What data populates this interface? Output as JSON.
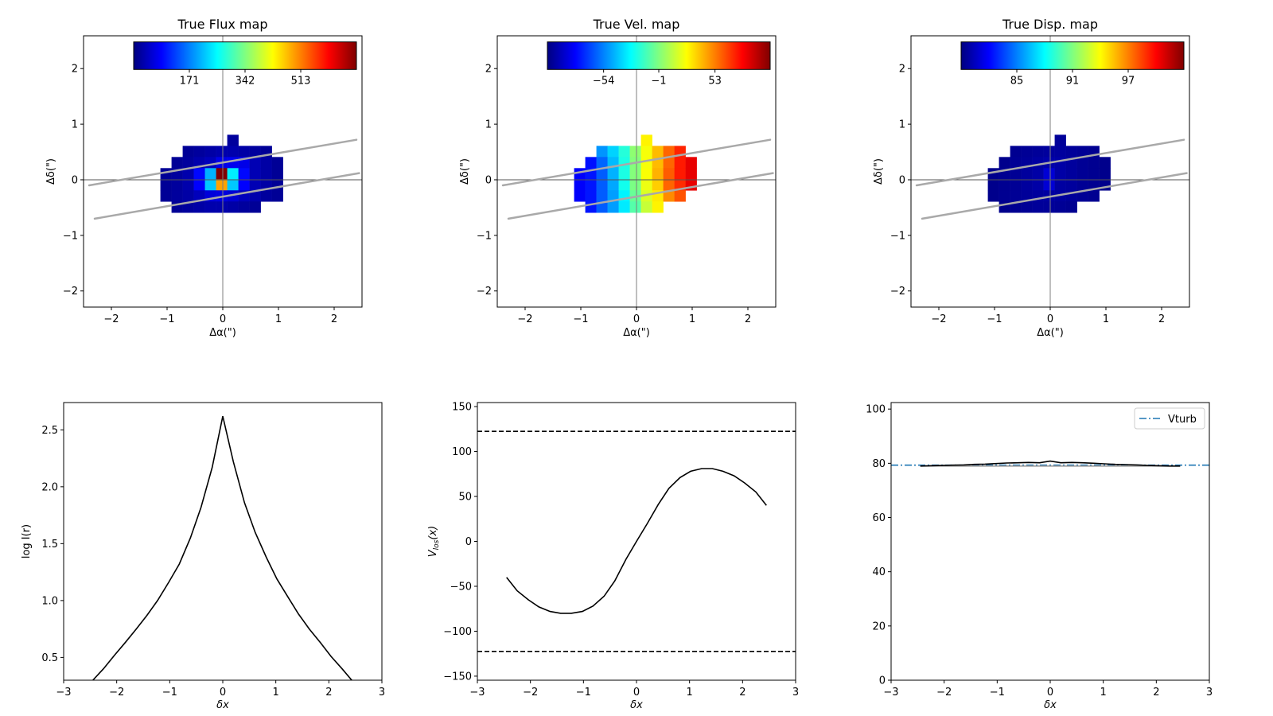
{
  "chart_data": [
    {
      "type": "heatmap",
      "title": "True Flux map",
      "xlabel": "Δα(\")",
      "ylabel": "Δδ(\")",
      "xlim": [
        -2.5,
        2.5
      ],
      "ylim": [
        -2.29,
        2.59
      ],
      "xticks": [
        {
          "v": -2,
          "label": "−2"
        },
        {
          "v": -1,
          "label": "−1"
        },
        {
          "v": 0,
          "label": "0"
        },
        {
          "v": 1,
          "label": "1"
        },
        {
          "v": 2,
          "label": "2"
        }
      ],
      "yticks": [
        {
          "v": -2,
          "label": "−2"
        },
        {
          "v": -1,
          "label": "−1"
        },
        {
          "v": 0,
          "label": "0"
        },
        {
          "v": 1,
          "label": "1"
        },
        {
          "v": 2,
          "label": "2"
        }
      ],
      "colormap": "jet",
      "clim": [
        0,
        684
      ],
      "colorbar_ticks": [
        {
          "v": 171,
          "label": "171"
        },
        {
          "v": 342,
          "label": "342"
        },
        {
          "v": 513,
          "label": "513"
        }
      ],
      "grid_x_start": -1.12,
      "grid_y_top": 0.81,
      "pixel_size": 0.2,
      "values": [
        [
          null,
          null,
          null,
          null,
          null,
          null,
          20,
          null,
          null,
          null,
          null
        ],
        [
          null,
          null,
          15,
          20,
          25,
          30,
          30,
          25,
          20,
          15,
          null
        ],
        [
          null,
          15,
          20,
          30,
          40,
          70,
          75,
          70,
          35,
          25,
          15
        ],
        [
          15,
          20,
          30,
          90,
          205,
          684,
          246,
          90,
          35,
          25,
          15
        ],
        [
          15,
          20,
          30,
          85,
          220,
          490,
          220,
          85,
          35,
          25,
          15
        ],
        [
          15,
          20,
          25,
          40,
          60,
          65,
          55,
          40,
          30,
          20,
          15
        ],
        [
          null,
          15,
          20,
          25,
          30,
          30,
          25,
          20,
          15,
          null,
          null
        ]
      ],
      "slit_lines": [
        [
          [
            -2.4,
            -0.1
          ],
          [
            2.4,
            0.72
          ]
        ],
        [
          [
            -2.3,
            -0.7
          ],
          [
            2.45,
            0.12
          ]
        ]
      ]
    },
    {
      "type": "heatmap",
      "title": "True Vel. map",
      "xlabel": "Δα(\")",
      "ylabel": "Δδ(\")",
      "xlim": [
        -2.5,
        2.5
      ],
      "ylim": [
        -2.29,
        2.59
      ],
      "xticks": [
        {
          "v": -2,
          "label": "−2"
        },
        {
          "v": -1,
          "label": "−1"
        },
        {
          "v": 0,
          "label": "0"
        },
        {
          "v": 1,
          "label": "1"
        },
        {
          "v": 2,
          "label": "2"
        }
      ],
      "yticks": [
        {
          "v": -2,
          "label": "−2"
        },
        {
          "v": -1,
          "label": "−1"
        },
        {
          "v": 0,
          "label": "0"
        },
        {
          "v": 1,
          "label": "1"
        },
        {
          "v": 2,
          "label": "2"
        }
      ],
      "colormap": "jet",
      "clim": [
        -108,
        106
      ],
      "colorbar_ticks": [
        {
          "v": -54,
          "label": "−54"
        },
        {
          "v": -1,
          "label": "−1"
        },
        {
          "v": 53,
          "label": "53"
        }
      ],
      "grid_x_start": -1.12,
      "grid_y_top": 0.81,
      "pixel_size": 0.2,
      "values": [
        [
          null,
          null,
          null,
          null,
          null,
          null,
          28,
          null,
          null,
          null,
          null
        ],
        [
          null,
          null,
          -50,
          -37,
          -20,
          2,
          24,
          40,
          58,
          72,
          null
        ],
        [
          null,
          -78,
          -60,
          -42,
          -22,
          0,
          24,
          40,
          58,
          74,
          84
        ],
        [
          -82,
          -77,
          -62,
          -44,
          -22,
          0,
          25,
          42,
          60,
          74,
          84
        ],
        [
          -82,
          -77,
          -62,
          -46,
          -24,
          -2,
          22,
          36,
          58,
          70,
          84
        ],
        [
          -82,
          -77,
          -62,
          -48,
          -30,
          -6,
          18,
          30,
          50,
          62,
          null
        ],
        [
          null,
          -77,
          -62,
          -48,
          -32,
          -10,
          14,
          28,
          null,
          null,
          null
        ]
      ],
      "slit_lines": [
        [
          [
            -2.4,
            -0.1
          ],
          [
            2.4,
            0.72
          ]
        ],
        [
          [
            -2.3,
            -0.7
          ],
          [
            2.45,
            0.12
          ]
        ]
      ]
    },
    {
      "type": "heatmap",
      "title": "True Disp. map",
      "xlabel": "Δα(\")",
      "ylabel": "Δδ(\")",
      "xlim": [
        -2.5,
        2.5
      ],
      "ylim": [
        -2.29,
        2.59
      ],
      "xticks": [
        {
          "v": -2,
          "label": "−2"
        },
        {
          "v": -1,
          "label": "−1"
        },
        {
          "v": 0,
          "label": "0"
        },
        {
          "v": 1,
          "label": "1"
        },
        {
          "v": 2,
          "label": "2"
        }
      ],
      "yticks": [
        {
          "v": -2,
          "label": "−2"
        },
        {
          "v": -1,
          "label": "−1"
        },
        {
          "v": 0,
          "label": "0"
        },
        {
          "v": 1,
          "label": "1"
        },
        {
          "v": 2,
          "label": "2"
        }
      ],
      "colormap": "jet",
      "clim": [
        79,
        103
      ],
      "colorbar_ticks": [
        {
          "v": 85,
          "label": "85"
        },
        {
          "v": 91,
          "label": "91"
        },
        {
          "v": 97,
          "label": "97"
        }
      ],
      "grid_x_start": -1.12,
      "grid_y_top": 0.81,
      "pixel_size": 0.2,
      "values": [
        [
          null,
          null,
          null,
          null,
          null,
          null,
          79.6,
          null,
          null,
          null,
          null
        ],
        [
          null,
          null,
          79.4,
          79.5,
          79.6,
          79.7,
          79.7,
          79.6,
          79.5,
          79.4,
          null
        ],
        [
          null,
          79.3,
          79.5,
          79.6,
          79.8,
          80.0,
          79.9,
          79.7,
          79.5,
          79.4,
          79.3
        ],
        [
          79.3,
          79.4,
          79.5,
          79.7,
          79.9,
          81.0,
          79.9,
          79.7,
          79.5,
          79.4,
          79.3
        ],
        [
          79.3,
          79.4,
          79.5,
          79.7,
          79.9,
          81.0,
          79.8,
          79.7,
          79.5,
          79.4,
          79.3
        ],
        [
          79.3,
          79.4,
          79.5,
          79.6,
          79.7,
          79.8,
          79.7,
          79.6,
          79.5,
          79.4,
          null
        ],
        [
          null,
          79.3,
          79.4,
          79.5,
          79.6,
          79.6,
          79.5,
          79.4,
          null,
          null,
          null
        ]
      ],
      "slit_lines": [
        [
          [
            -2.4,
            -0.1
          ],
          [
            2.4,
            0.72
          ]
        ],
        [
          [
            -2.3,
            -0.7
          ],
          [
            2.45,
            0.12
          ]
        ]
      ]
    },
    {
      "type": "line",
      "title": "",
      "xlabel": "δx",
      "ylabel": "log I(r)",
      "xlim": [
        -3,
        3
      ],
      "ylim": [
        0.3,
        2.74
      ],
      "xticks": [
        {
          "v": -3,
          "label": "−3"
        },
        {
          "v": -2,
          "label": "−2"
        },
        {
          "v": -1,
          "label": "−1"
        },
        {
          "v": 0,
          "label": "0"
        },
        {
          "v": 1,
          "label": "1"
        },
        {
          "v": 2,
          "label": "2"
        },
        {
          "v": 3,
          "label": "3"
        }
      ],
      "yticks": [
        {
          "v": 0.5,
          "label": "0.5"
        },
        {
          "v": 1.0,
          "label": "1.0"
        },
        {
          "v": 1.5,
          "label": "1.5"
        },
        {
          "v": 2.0,
          "label": "2.0"
        },
        {
          "v": 2.5,
          "label": "2.5"
        }
      ],
      "series": [
        {
          "name": "log I(r)",
          "color": "#000000",
          "style": "solid",
          "x": [
            -2.65,
            -2.45,
            -2.25,
            -2.04,
            -1.84,
            -1.63,
            -1.43,
            -1.23,
            -1.02,
            -0.82,
            -0.61,
            -0.41,
            -0.2,
            0,
            0.2,
            0.41,
            0.61,
            0.82,
            1.02,
            1.23,
            1.43,
            1.63,
            1.84,
            2.04,
            2.25,
            2.45,
            2.65
          ],
          "y": [
            0.19,
            0.3,
            0.4,
            0.52,
            0.63,
            0.75,
            0.87,
            1.0,
            1.16,
            1.32,
            1.55,
            1.82,
            2.17,
            2.62,
            2.22,
            1.86,
            1.6,
            1.38,
            1.19,
            1.03,
            0.88,
            0.75,
            0.63,
            0.51,
            0.4,
            0.29,
            0.18
          ]
        }
      ]
    },
    {
      "type": "line",
      "title": "",
      "xlabel": "δx",
      "ylabel": {
        "main": "V",
        "sub": "los",
        "tail": "(x)"
      },
      "xlim": [
        -3,
        3
      ],
      "ylim": [
        -154.5,
        154.5
      ],
      "xticks": [
        {
          "v": -3,
          "label": "−3"
        },
        {
          "v": -2,
          "label": "−2"
        },
        {
          "v": -1,
          "label": "−1"
        },
        {
          "v": 0,
          "label": "0"
        },
        {
          "v": 1,
          "label": "1"
        },
        {
          "v": 2,
          "label": "2"
        },
        {
          "v": 3,
          "label": "3"
        }
      ],
      "yticks": [
        {
          "v": -150,
          "label": "−150"
        },
        {
          "v": -100,
          "label": "−100"
        },
        {
          "v": -50,
          "label": "−50"
        },
        {
          "v": 0,
          "label": "0"
        },
        {
          "v": 50,
          "label": "50"
        },
        {
          "v": 100,
          "label": "100"
        },
        {
          "v": 150,
          "label": "150"
        }
      ],
      "hlines": [
        {
          "y": 122.5,
          "style": "dashed",
          "color": "#000000"
        },
        {
          "y": -122.5,
          "style": "dashed",
          "color": "#000000"
        }
      ],
      "series": [
        {
          "name": "V_los",
          "color": "#000000",
          "style": "solid",
          "x": [
            -2.45,
            -2.25,
            -2.04,
            -1.84,
            -1.63,
            -1.43,
            -1.23,
            -1.02,
            -0.82,
            -0.61,
            -0.41,
            -0.2,
            0,
            0.2,
            0.41,
            0.61,
            0.82,
            1.02,
            1.23,
            1.43,
            1.63,
            1.84,
            2.04,
            2.25,
            2.45
          ],
          "y": [
            -40,
            -55,
            -65,
            -73,
            -78,
            -80,
            -80,
            -78,
            -72,
            -61,
            -44,
            -20,
            0,
            19.5,
            41,
            59,
            71,
            78,
            81,
            81,
            78,
            73,
            65,
            55,
            40
          ]
        }
      ]
    },
    {
      "type": "line",
      "title": "",
      "xlabel": "δx",
      "ylabel": "",
      "xlim": [
        -3,
        3
      ],
      "ylim": [
        0,
        102.4
      ],
      "xticks": [
        {
          "v": -3,
          "label": "−3"
        },
        {
          "v": -2,
          "label": "−2"
        },
        {
          "v": -1,
          "label": "−1"
        },
        {
          "v": 0,
          "label": "0"
        },
        {
          "v": 1,
          "label": "1"
        },
        {
          "v": 2,
          "label": "2"
        },
        {
          "v": 3,
          "label": "3"
        }
      ],
      "yticks": [
        {
          "v": 0,
          "label": "0"
        },
        {
          "v": 20,
          "label": "20"
        },
        {
          "v": 40,
          "label": "40"
        },
        {
          "v": 60,
          "label": "60"
        },
        {
          "v": 80,
          "label": "80"
        },
        {
          "v": 100,
          "label": "100"
        }
      ],
      "hlines": [
        {
          "y": 79.3,
          "style": "dashdot",
          "color": "#1f77b4",
          "label": "Vturb"
        }
      ],
      "legend": {
        "position": "top-right",
        "entries": [
          {
            "label": "Vturb",
            "color": "#1f77b4",
            "style": "dashdot"
          }
        ]
      },
      "series": [
        {
          "name": "dispersion-model",
          "color": "#999999",
          "style": "solid",
          "x": [
            -2.45,
            2.45
          ],
          "y": [
            79.0,
            79.0
          ]
        },
        {
          "name": "dispersion",
          "color": "#000000",
          "style": "solid",
          "x": [
            -2.45,
            -2.25,
            -2.04,
            -1.84,
            -1.63,
            -1.43,
            -1.23,
            -1.02,
            -0.82,
            -0.61,
            -0.41,
            -0.2,
            0,
            0.2,
            0.41,
            0.61,
            0.82,
            1.02,
            1.23,
            1.43,
            1.63,
            1.84,
            2.04,
            2.25,
            2.45
          ],
          "y": [
            79.0,
            79.1,
            79.2,
            79.3,
            79.4,
            79.6,
            79.7,
            79.9,
            80.1,
            80.2,
            80.3,
            80.2,
            80.8,
            80.2,
            80.3,
            80.2,
            80.0,
            79.8,
            79.6,
            79.5,
            79.4,
            79.2,
            79.1,
            79.0,
            79.0
          ]
        }
      ]
    }
  ]
}
